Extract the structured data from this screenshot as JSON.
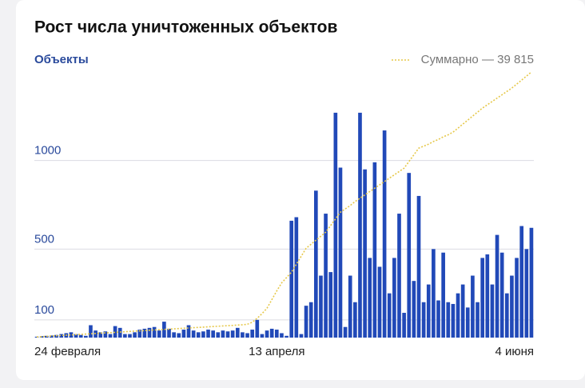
{
  "chart_data": {
    "type": "bar",
    "title": "Рост числа уничтоженных объектов",
    "y_label": "Объекты",
    "categories": [
      "24 февраля",
      null,
      null,
      null,
      null,
      null,
      null,
      null,
      null,
      null,
      null,
      null,
      null,
      null,
      null,
      null,
      null,
      null,
      null,
      null,
      null,
      null,
      null,
      null,
      null,
      null,
      null,
      null,
      null,
      null,
      null,
      null,
      null,
      null,
      null,
      null,
      null,
      null,
      null,
      null,
      null,
      null,
      null,
      null,
      null,
      null,
      null,
      null,
      null,
      "13 апреля",
      null,
      null,
      null,
      null,
      null,
      null,
      null,
      null,
      null,
      null,
      null,
      null,
      null,
      null,
      null,
      null,
      null,
      null,
      null,
      null,
      null,
      null,
      null,
      null,
      null,
      null,
      null,
      null,
      null,
      null,
      null,
      null,
      null,
      null,
      null,
      null,
      null,
      null,
      null,
      null,
      null,
      null,
      null,
      null,
      null,
      null,
      null,
      null,
      null,
      null,
      null,
      "4 июня"
    ],
    "series": [
      {
        "name": "Объекты",
        "color": "#2149b8",
        "values": [
          5,
          8,
          10,
          12,
          15,
          20,
          25,
          30,
          20,
          15,
          10,
          70,
          40,
          30,
          35,
          20,
          65,
          55,
          20,
          20,
          30,
          45,
          50,
          55,
          60,
          40,
          90,
          50,
          30,
          25,
          45,
          70,
          40,
          30,
          35,
          45,
          40,
          30,
          40,
          35,
          40,
          55,
          30,
          25,
          45,
          100,
          20,
          40,
          50,
          45,
          25,
          10,
          660,
          680,
          20,
          180,
          200,
          830,
          350,
          700,
          370,
          1270,
          960,
          60,
          350,
          200,
          1270,
          950,
          450,
          990,
          400,
          1170,
          250,
          450,
          700,
          140,
          930,
          320,
          800,
          200,
          300,
          500,
          210,
          480,
          200,
          190,
          250,
          300,
          170,
          350,
          200,
          450,
          470,
          300,
          580,
          480,
          250,
          350,
          450,
          630,
          500,
          620
        ]
      },
      {
        "name": "Суммарно — 39 815",
        "color": "#e6c84a",
        "axis": "y2",
        "values": [
          100,
          140,
          190,
          230,
          280,
          320,
          360,
          410,
          450,
          490,
          530,
          580,
          620,
          660,
          710,
          750,
          790,
          840,
          880,
          920,
          970,
          1010,
          1050,
          1100,
          1140,
          1180,
          1230,
          1270,
          1310,
          1360,
          1400,
          1440,
          1490,
          1530,
          1570,
          1620,
          1660,
          1700,
          1750,
          1790,
          1830,
          1880,
          1920,
          2000,
          2300,
          2900,
          3600,
          4400,
          5700,
          7000,
          8200,
          9000,
          9800,
          11000,
          12200,
          13400,
          14000,
          14600,
          15200,
          15800,
          16800,
          17800,
          18800,
          19300,
          19800,
          20400,
          20900,
          21400,
          21900,
          22400,
          22900,
          23400,
          23900,
          24400,
          24900,
          25400,
          26400,
          27400,
          28400,
          28700,
          29000,
          29400,
          29700,
          30100,
          30400,
          30800,
          31400,
          32000,
          32600,
          33200,
          33800,
          34400,
          34900,
          35400,
          35900,
          36400,
          36900,
          37400,
          38000,
          38600,
          39200,
          39815
        ]
      }
    ],
    "ylim": [
      0,
      1500
    ],
    "yticks": [
      100,
      500,
      1000
    ],
    "y2lim": [
      0,
      39815
    ],
    "grid": true
  }
}
